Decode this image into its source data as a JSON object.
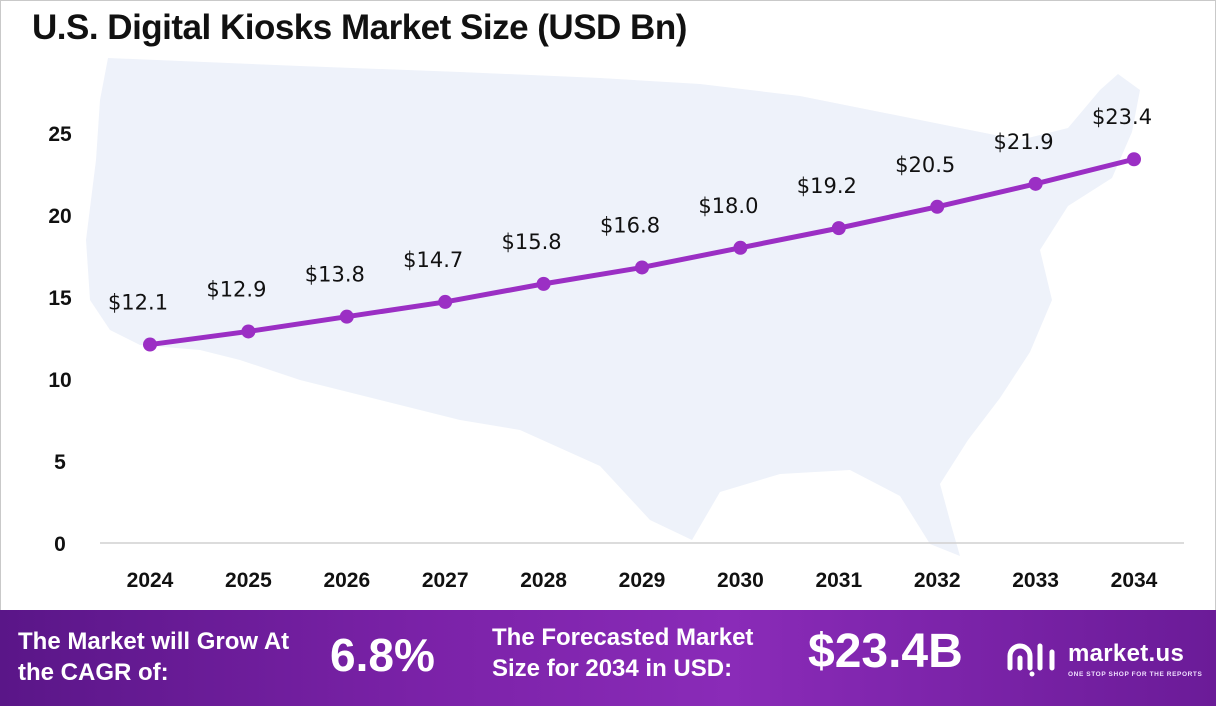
{
  "chart_data": {
    "type": "line",
    "title": "U.S. Digital Kiosks Market Size (USD Bn)",
    "x": [
      "2024",
      "2025",
      "2026",
      "2027",
      "2028",
      "2029",
      "2030",
      "2031",
      "2032",
      "2033",
      "2034"
    ],
    "series": [
      {
        "values": [
          12.1,
          12.9,
          13.8,
          14.7,
          15.8,
          16.8,
          18.0,
          19.2,
          20.5,
          21.9,
          23.4
        ]
      }
    ],
    "data_labels": [
      "$12.1",
      "$12.9",
      "$13.8",
      "$14.7",
      "$15.8",
      "$16.8",
      "$18.0",
      "$19.2",
      "$20.5",
      "$21.9",
      "$23.4"
    ],
    "yticks": [
      0,
      5,
      10,
      15,
      20,
      25
    ],
    "ylim": [
      0,
      25
    ],
    "xlabel": "",
    "ylabel": "",
    "grid": false,
    "line_color": "#9b2fc4",
    "background_map": "united-states-map-silhouette"
  },
  "footer": {
    "cagr_label": "The Market will Grow At the CAGR of:",
    "cagr_value": "6.8%",
    "forecast_label": "The Forecasted Market Size for 2034 in USD:",
    "forecast_value": "$23.4B"
  },
  "logo": {
    "name": "market.us",
    "tagline": "ONE STOP SHOP FOR THE REPORTS",
    "icon": "market-us-logo-icon"
  }
}
